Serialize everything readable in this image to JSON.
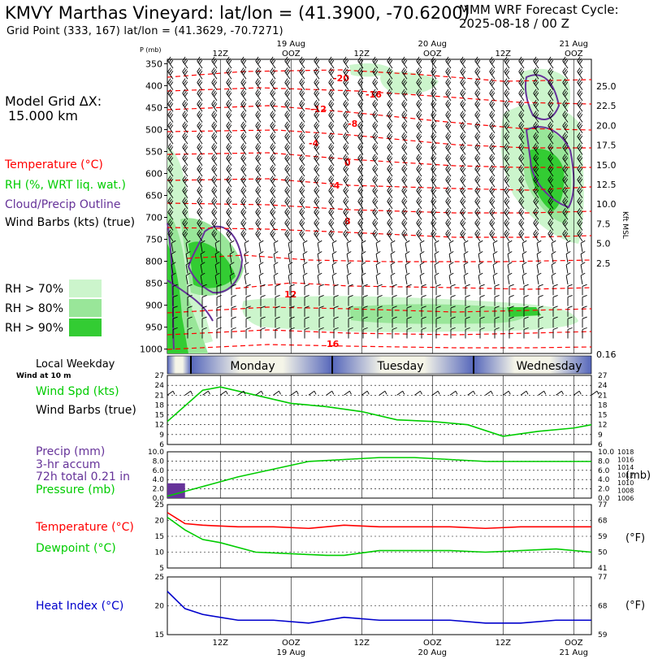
{
  "header": {
    "title": "KMVY Marthas Vineyard:  lat/lon = (41.3900, -70.6200)",
    "subtitle": "Grid Point (333, 167) lat/lon = (41.3629, -70.7271)",
    "cycle_line1": "MMM WRF Forecast Cycle:",
    "cycle_line2": "2025-08-18 / 00  Z"
  },
  "sidebar": {
    "model_grid_label": "Model Grid ΔX:",
    "model_grid_value": "15.000 km",
    "legend_temperature": "Temperature (°C)",
    "legend_rh": "RH (%, WRT liq. wat.)",
    "legend_cloud": "Cloud/Precip Outline",
    "legend_wind": "Wind Barbs (kts) (true)",
    "rh_70": "RH > 70%",
    "rh_80": "RH > 80%",
    "rh_90": "RH > 90%",
    "local_weekday": "Local Weekday",
    "wind_at_10m": "Wind at 10 m",
    "wind_spd": "Wind Spd (kts)",
    "wind_barbs": "Wind Barbs (true)",
    "precip": "Precip (mm)",
    "accum": "3-hr accum",
    "total": "72h total 0.21 in",
    "pressure": "Pressure (mb)",
    "temperature": "Temperature (°C)",
    "dewpoint": "Dewpoint (°C)",
    "heat_index": "Heat Index (°C)"
  },
  "colors": {
    "temperature": "#ff0000",
    "rh_green": "#00cc00",
    "rh70": "#ccf5cc",
    "rh80": "#99e699",
    "rh90": "#33cc33",
    "cloud": "#663399",
    "heat_index": "#0000cc",
    "weekday_bar": "#5566bb"
  },
  "time_axis": {
    "top_ticks": [
      "12Z",
      "12Z",
      "12Z"
    ],
    "top_dates": [
      {
        "line1": "19 Aug",
        "line2": "OOZ"
      },
      {
        "line1": "20 Aug",
        "line2": "OOZ"
      },
      {
        "line1": "21 Aug",
        "line2": "OOZ"
      }
    ],
    "bottom_ticks": [
      "12Z",
      "12Z",
      "12Z"
    ],
    "bottom_dates": [
      {
        "line1": "OOZ",
        "line2": "19 Aug"
      },
      {
        "line1": "OOZ",
        "line2": "20 Aug"
      },
      {
        "line1": "OOZ",
        "line2": "21 Aug"
      }
    ],
    "pmb_label": "P (mb)",
    "kft_label": "Kft MSL"
  },
  "weekdays": [
    "Monday",
    "Tuesday",
    "Wednesday"
  ],
  "chart_data": [
    {
      "type": "heatmap",
      "panel": "cross-section",
      "pressure_levels_mb": [
        350,
        400,
        450,
        500,
        550,
        600,
        650,
        700,
        750,
        800,
        850,
        900,
        950,
        1000
      ],
      "height_kft_ticks": [
        "25.0",
        "22.5",
        "20.0",
        "17.5",
        "15.0",
        "12.5",
        "10.0",
        "7.5",
        "5.0",
        "2.5",
        "0.16"
      ],
      "temperature_contour_labels": [
        "-20",
        "-16",
        "-12",
        "-8",
        "-4",
        "0",
        "-4",
        "8",
        "12",
        "16"
      ]
    },
    {
      "type": "line",
      "panel": "wind",
      "ylim": [
        6,
        27
      ],
      "yticks": [
        6,
        9,
        12,
        15,
        18,
        21,
        24,
        27
      ],
      "series": [
        {
          "name": "Wind Spd (kts)",
          "x_hours": [
            0,
            6,
            9,
            15,
            21,
            27,
            33,
            39,
            45,
            51,
            57,
            63,
            69,
            72
          ],
          "values": [
            13,
            22.5,
            23.5,
            21,
            18.5,
            17.5,
            16,
            13.5,
            13,
            12,
            8.5,
            10,
            11,
            12
          ]
        }
      ]
    },
    {
      "type": "line",
      "panel": "precip-pressure",
      "precip_ylim": [
        0,
        10
      ],
      "precip_yticks": [
        "0.0",
        "2.0",
        "4.0",
        "6.0",
        "8.0",
        "10.0"
      ],
      "pressure_ylim": [
        1006,
        1018
      ],
      "pressure_yticks": [
        1006,
        1008,
        1010,
        1012,
        1014,
        1016,
        1018
      ],
      "pressure_unit": "(mb)",
      "precip_bars": [
        {
          "x_hours": 1.5,
          "value": 3.2
        }
      ],
      "series": [
        {
          "name": "Pressure (mb)",
          "x_hours": [
            0,
            6,
            12,
            18,
            24,
            30,
            36,
            42,
            48,
            54,
            60,
            66,
            72
          ],
          "values": [
            1006.5,
            1009,
            1011.5,
            1013.5,
            1015.5,
            1016,
            1016.5,
            1016.5,
            1016,
            1015.5,
            1015.5,
            1015.5,
            1015.5
          ]
        }
      ]
    },
    {
      "type": "line",
      "panel": "temp-dewpoint",
      "ylim": [
        5,
        25
      ],
      "yticks": [
        5,
        10,
        15,
        20,
        25
      ],
      "fticks": [
        41,
        50,
        59,
        68,
        77
      ],
      "f_unit": "(°F)",
      "series": [
        {
          "name": "Temperature (°C)",
          "x_hours": [
            0,
            3,
            6,
            12,
            18,
            24,
            30,
            36,
            42,
            48,
            54,
            60,
            66,
            72
          ],
          "values": [
            22.5,
            19,
            18.5,
            18,
            18,
            17.5,
            18.5,
            18,
            18,
            18,
            17.5,
            18,
            18,
            18
          ]
        },
        {
          "name": "Dewpoint (°C)",
          "x_hours": [
            0,
            3,
            6,
            9,
            15,
            21,
            27,
            30,
            36,
            42,
            48,
            54,
            60,
            66,
            72
          ],
          "values": [
            21,
            17,
            14,
            13,
            10,
            9.5,
            9,
            9,
            10.5,
            10.5,
            10.5,
            10,
            10.5,
            11,
            10
          ]
        }
      ]
    },
    {
      "type": "line",
      "panel": "heat-index",
      "ylim": [
        15,
        25
      ],
      "yticks": [
        15,
        20,
        25
      ],
      "fticks": [
        59,
        68,
        77
      ],
      "f_unit": "(°F)",
      "series": [
        {
          "name": "Heat Index (°C)",
          "x_hours": [
            0,
            3,
            6,
            12,
            18,
            24,
            30,
            36,
            42,
            48,
            54,
            60,
            66,
            72
          ],
          "values": [
            22.5,
            19.5,
            18.5,
            17.5,
            17.5,
            17,
            18,
            17.5,
            17.5,
            17.5,
            17,
            17,
            17.5,
            17.5
          ]
        }
      ]
    }
  ]
}
